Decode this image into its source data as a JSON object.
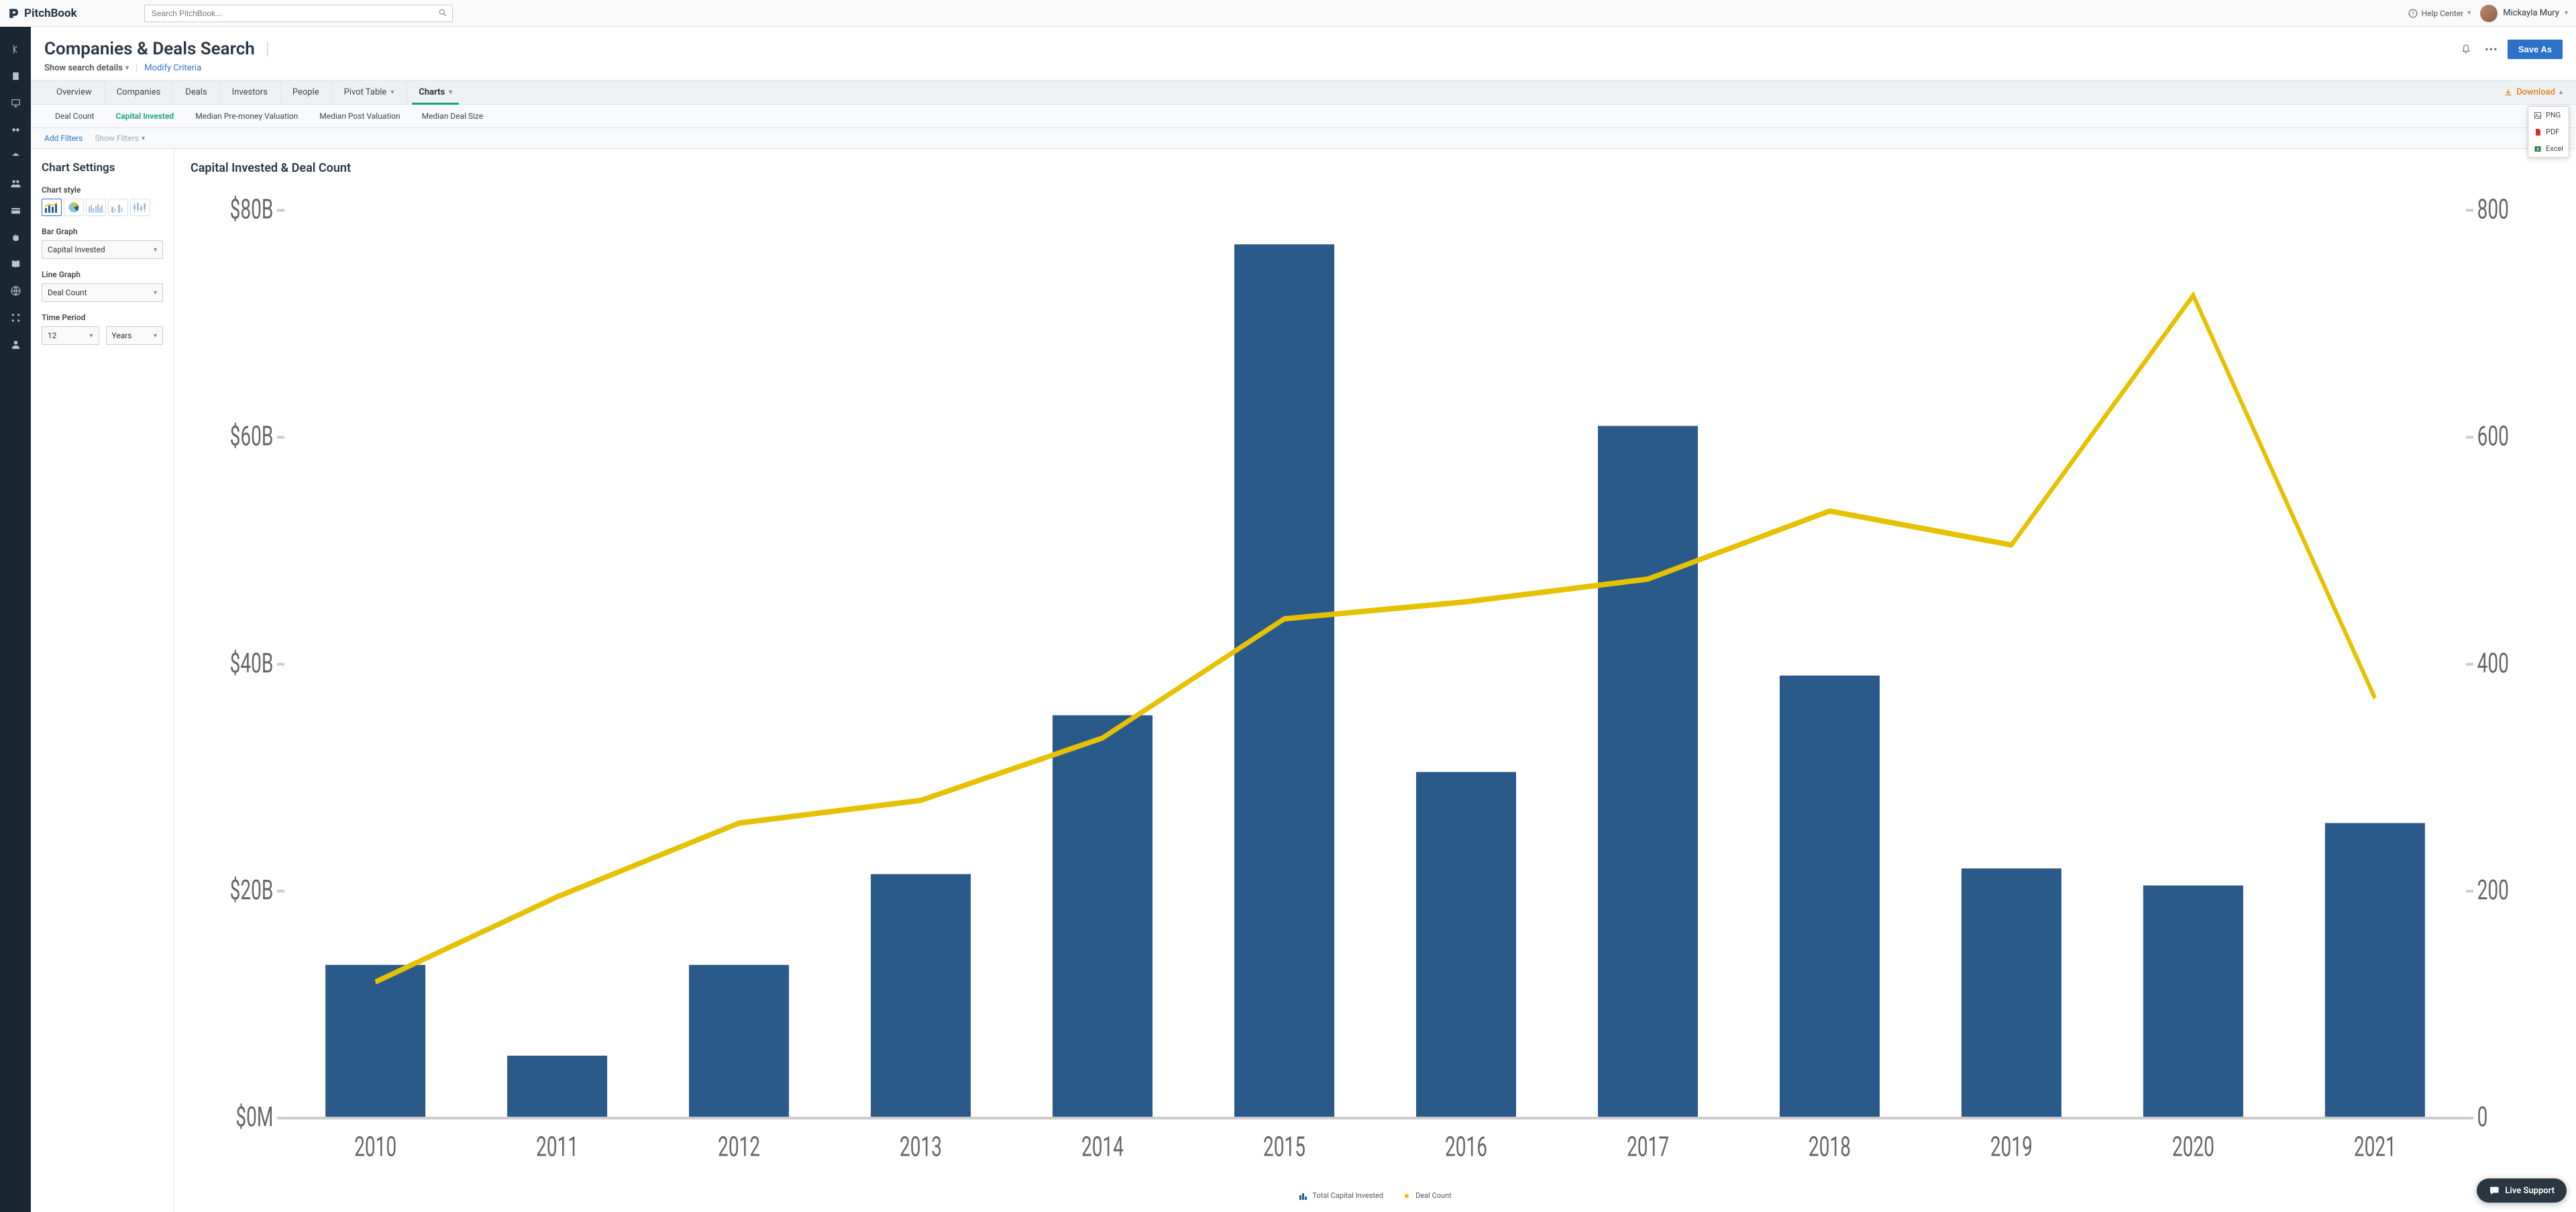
{
  "brand": {
    "name": "PitchBook"
  },
  "search": {
    "placeholder": "Search PitchBook..."
  },
  "help_label": "Help Center",
  "user": {
    "name": "Mickayla Mury"
  },
  "page": {
    "title": "Companies & Deals Search",
    "search_details": "Show search details",
    "modify": "Modify Criteria",
    "save_as": "Save As"
  },
  "tabs": [
    "Overview",
    "Companies",
    "Deals",
    "Investors",
    "People",
    "Pivot Table",
    "Charts"
  ],
  "active_tab_index": 6,
  "download": {
    "label": "Download",
    "options": [
      "PNG",
      "PDF",
      "Excel"
    ]
  },
  "subtabs": [
    "Deal Count",
    "Capital Invested",
    "Median Pre-money Valuation",
    "Median Post Valuation",
    "Median Deal Size"
  ],
  "active_subtab_index": 1,
  "filters": {
    "add": "Add Filters",
    "show": "Show Filters"
  },
  "settings": {
    "title": "Chart Settings",
    "style_label": "Chart style",
    "bar_graph": {
      "label": "Bar Graph",
      "value": "Capital Invested"
    },
    "line_graph": {
      "label": "Line Graph",
      "value": "Deal Count"
    },
    "time_period": {
      "label": "Time Period",
      "value_n": "12",
      "value_unit": "Years"
    }
  },
  "chart": {
    "title": "Capital Invested & Deal Count",
    "type": "bar+line",
    "x_categories": [
      "2010",
      "2011",
      "2012",
      "2013",
      "2014",
      "2015",
      "2016",
      "2017",
      "2018",
      "2019",
      "2020",
      "2021"
    ],
    "bar_series": {
      "name": "Total Capital Invested",
      "values_B": [
        13.5,
        5.5,
        13.5,
        21.5,
        35.5,
        77,
        30.5,
        61,
        39,
        22,
        20.5,
        26
      ],
      "color": "#2a5a8a"
    },
    "line_series": {
      "name": "Deal Count",
      "values": [
        120,
        195,
        260,
        280,
        335,
        440,
        455,
        475,
        535,
        505,
        725,
        370
      ],
      "color": "#e5c100"
    },
    "y_left": {
      "min": 0,
      "max": 80,
      "tick_step": 20,
      "ticks": [
        "$0M",
        "$20B",
        "$40B",
        "$60B",
        "$80B"
      ]
    },
    "y_right": {
      "min": 0,
      "max": 800,
      "tick_step": 200,
      "ticks": [
        "0",
        "200",
        "400",
        "600",
        "800"
      ]
    },
    "background": "#ffffff",
    "grid_visible": false,
    "bar_width_ratio": 0.55,
    "line_width": 2,
    "marker_radius": 0,
    "axis_color": "#cccccc",
    "label_fontsize": 10,
    "title_fontsize": 18
  },
  "legend": {
    "bar_label": "Total Capital Invested",
    "line_label": "Deal Count"
  },
  "support_label": "Live Support",
  "rail_items": [
    "collapse",
    "doc",
    "monitor",
    "handshake",
    "bank",
    "people",
    "card",
    "hand",
    "book",
    "globe",
    "tools",
    "user"
  ]
}
